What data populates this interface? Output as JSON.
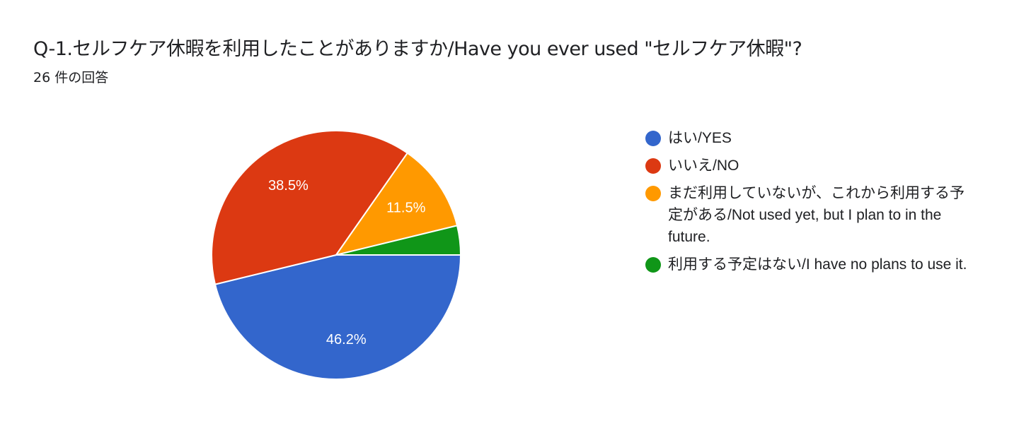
{
  "header": {
    "title": "Q-1.セルフケア休暇を利用したことがありますか/Have you ever used \"セルフケア休暇\"?",
    "response_count": "26 件の回答"
  },
  "chart_data": {
    "type": "pie",
    "categories": [
      "はい/YES",
      "いいえ/NO",
      "まだ利用していないが、これから利用する予定がある/Not used yet, but I plan to in the future.",
      "利用する予定はない/I have no plans to use it."
    ],
    "values": [
      46.2,
      38.5,
      11.5,
      3.8
    ],
    "value_labels": [
      "46.2%",
      "38.5%",
      "11.5%",
      ""
    ],
    "colors": [
      "#3366cc",
      "#dc3912",
      "#ff9900",
      "#109618"
    ],
    "legend_position": "right"
  }
}
